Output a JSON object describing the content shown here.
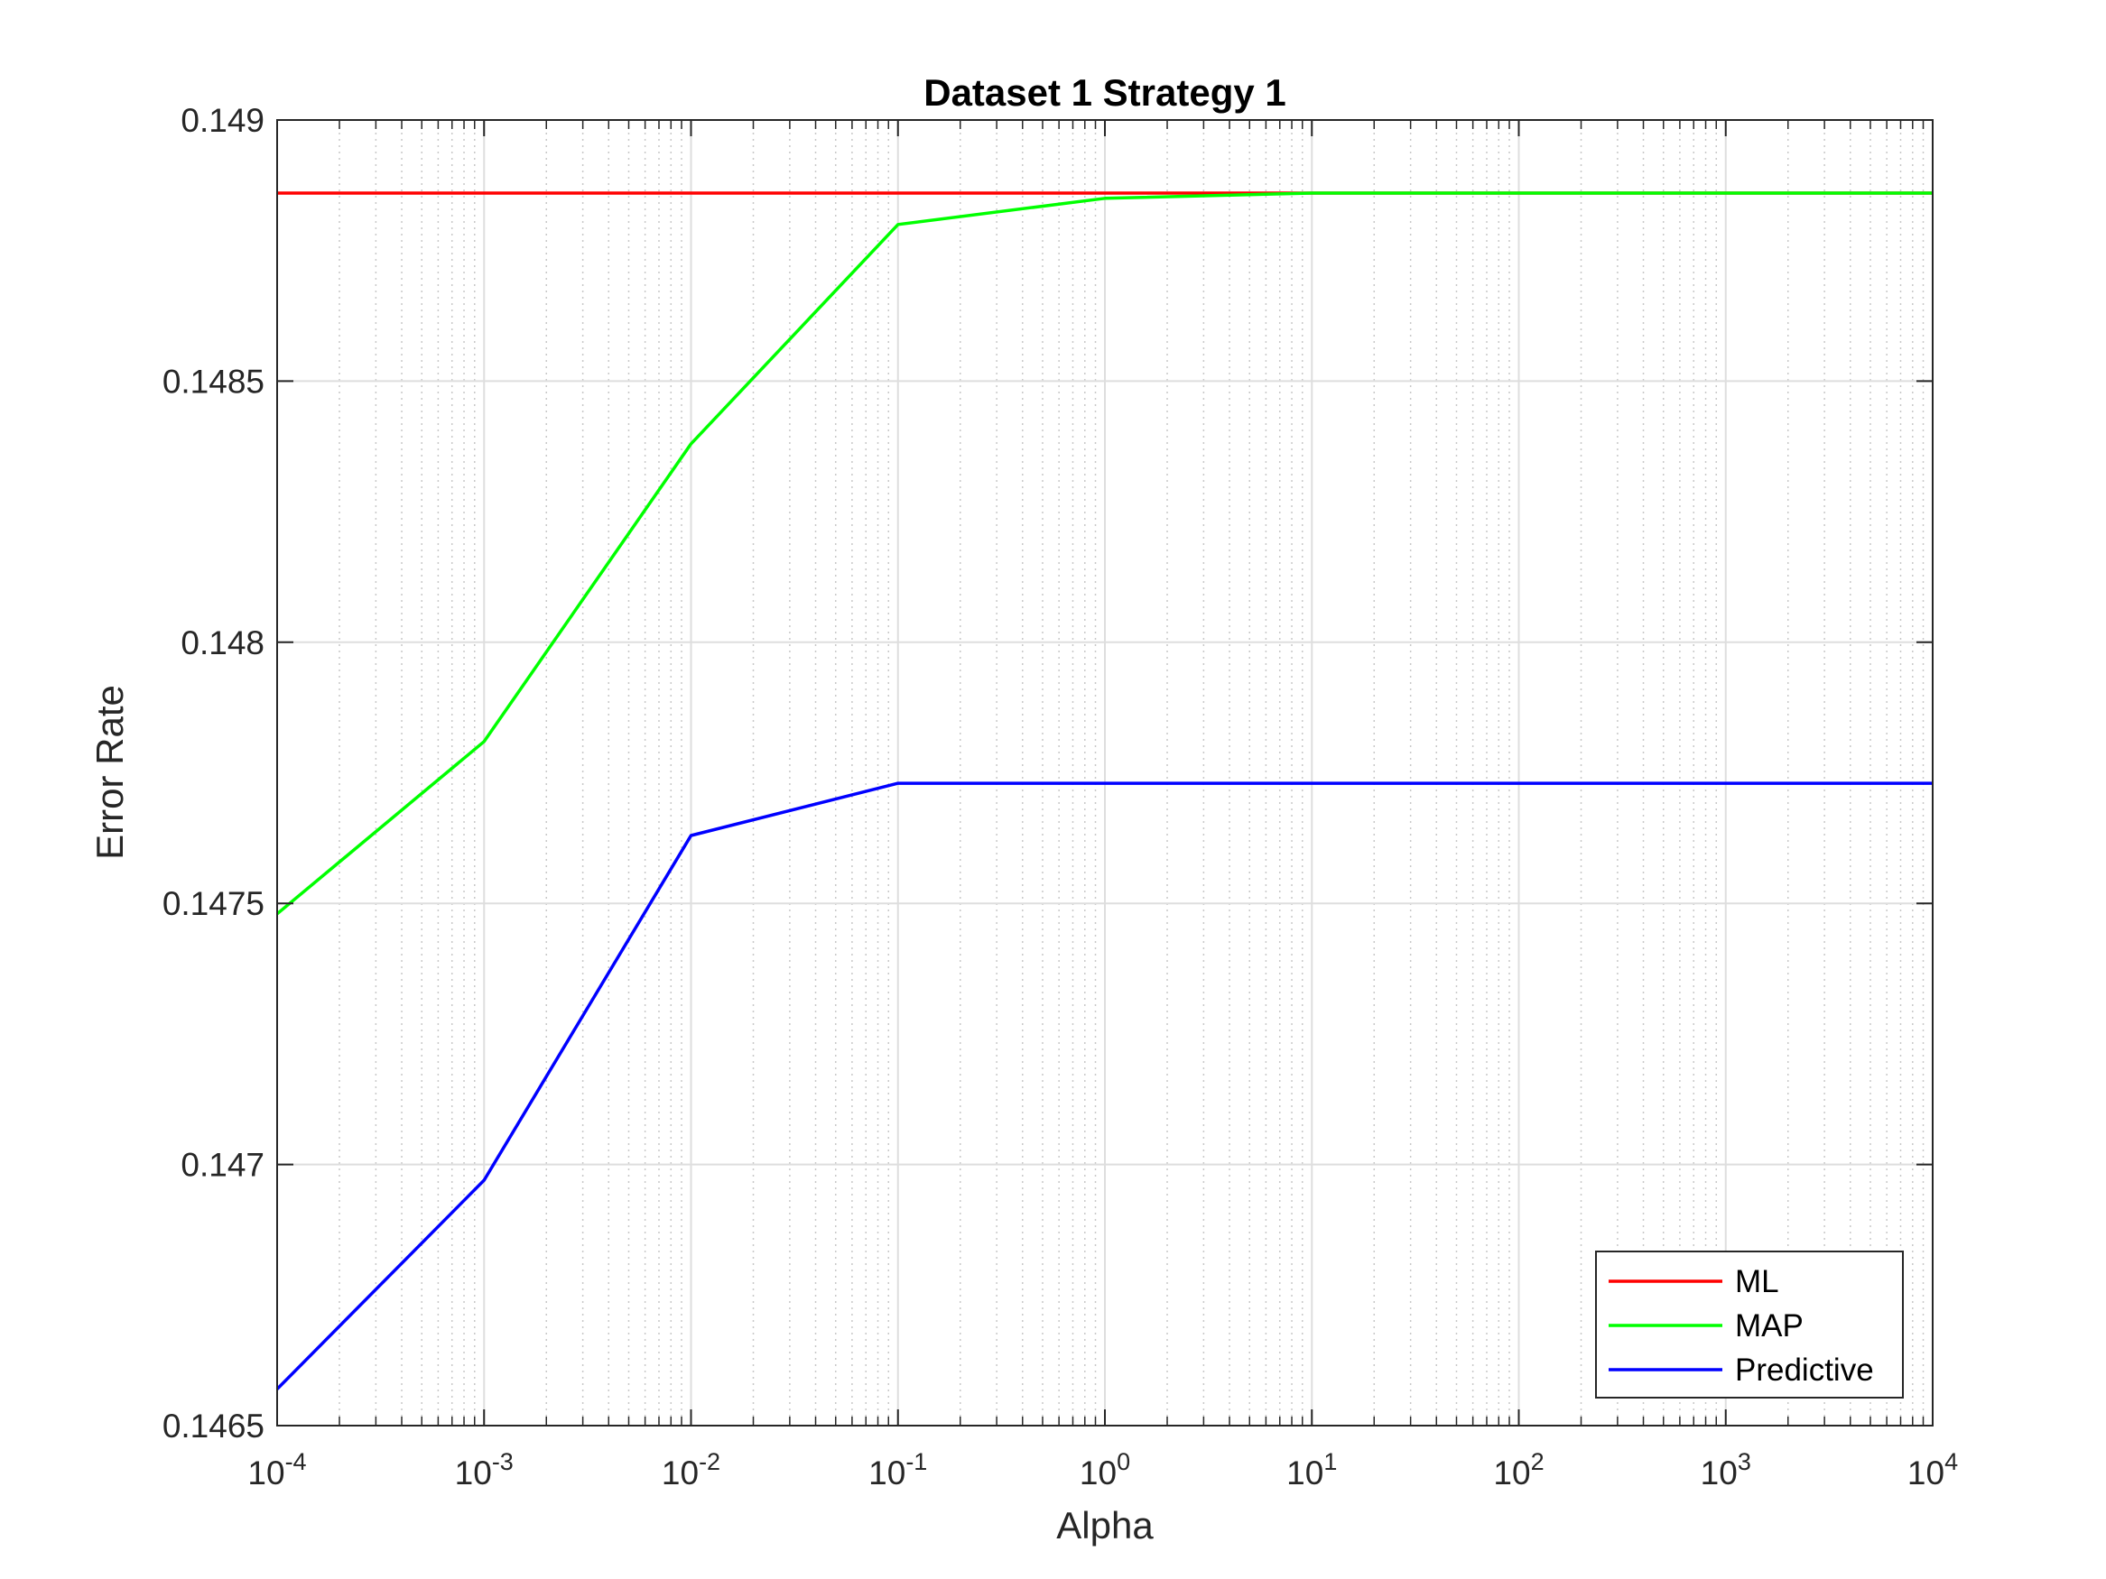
{
  "chart_data": {
    "type": "line",
    "title": "Dataset 1 Strategy 1",
    "xlabel": "Alpha",
    "ylabel": "Error Rate",
    "x_scale": "log",
    "xlim": [
      0.0001,
      10000
    ],
    "ylim": [
      0.1465,
      0.149
    ],
    "x_ticks": [
      {
        "base": "10",
        "exp": "-4",
        "value": 0.0001
      },
      {
        "base": "10",
        "exp": "-3",
        "value": 0.001
      },
      {
        "base": "10",
        "exp": "-2",
        "value": 0.01
      },
      {
        "base": "10",
        "exp": "-1",
        "value": 0.1
      },
      {
        "base": "10",
        "exp": "0",
        "value": 1
      },
      {
        "base": "10",
        "exp": "1",
        "value": 10
      },
      {
        "base": "10",
        "exp": "2",
        "value": 100
      },
      {
        "base": "10",
        "exp": "3",
        "value": 1000
      },
      {
        "base": "10",
        "exp": "4",
        "value": 10000
      }
    ],
    "y_ticks": [
      "0.1465",
      "0.147",
      "0.1475",
      "0.148",
      "0.1485",
      "0.149"
    ],
    "grid": true,
    "legend_position": "bottom-right",
    "x": [
      0.0001,
      0.001,
      0.01,
      0.1,
      1,
      10,
      100,
      1000,
      10000
    ],
    "series": [
      {
        "name": "ML",
        "color": "#ff0000",
        "values": [
          0.14886,
          0.14886,
          0.14886,
          0.14886,
          0.14886,
          0.14886,
          0.14886,
          0.14886,
          0.14886
        ]
      },
      {
        "name": "MAP",
        "color": "#00ff00",
        "values": [
          0.14748,
          0.14781,
          0.14838,
          0.1488,
          0.14885,
          0.14886,
          0.14886,
          0.14886,
          0.14886
        ]
      },
      {
        "name": "Predictive",
        "color": "#0000ff",
        "values": [
          0.14657,
          0.14697,
          0.14763,
          0.14773,
          0.14773,
          0.14773,
          0.14773,
          0.14773,
          0.14773
        ]
      }
    ]
  }
}
